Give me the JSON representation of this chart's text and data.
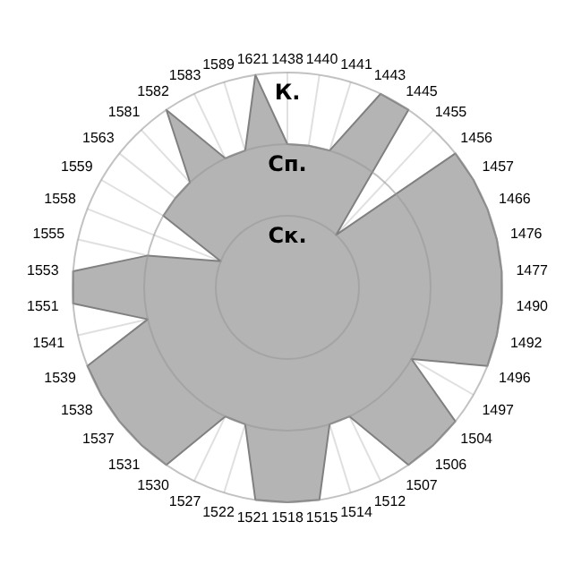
{
  "chart_data": {
    "type": "radar",
    "categories": [
      "1438",
      "1440",
      "1441",
      "1443",
      "1445",
      "1455",
      "1456",
      "1457",
      "1466",
      "1476",
      "1477",
      "1490",
      "1492",
      "1496",
      "1497",
      "1504",
      "1506",
      "1507",
      "1512",
      "1514",
      "1515",
      "1518",
      "1521",
      "1522",
      "1527",
      "1530",
      "1531",
      "1537",
      "1538",
      "1539",
      "1541",
      "1551",
      "1553",
      "1555",
      "1558",
      "1559",
      "1563",
      "1581",
      "1582",
      "1583",
      "1589",
      "1621"
    ],
    "series": [
      {
        "color": "#b4b4b4",
        "values": [
          2,
          2,
          2,
          3,
          3,
          1,
          3,
          3,
          3,
          3,
          3,
          3,
          3,
          3,
          2,
          3,
          3,
          3,
          2,
          2,
          3,
          3,
          3,
          2,
          2,
          3,
          3,
          3,
          3,
          3,
          2,
          3,
          3,
          2,
          1,
          2,
          2,
          2,
          3,
          2,
          2,
          3
        ]
      }
    ],
    "ylim": [
      0,
      3
    ],
    "yticks": [
      {
        "value": 1,
        "label": "Ск."
      },
      {
        "value": 2,
        "label": "Сп."
      },
      {
        "value": 3,
        "label": "К."
      }
    ],
    "grid": true
  }
}
